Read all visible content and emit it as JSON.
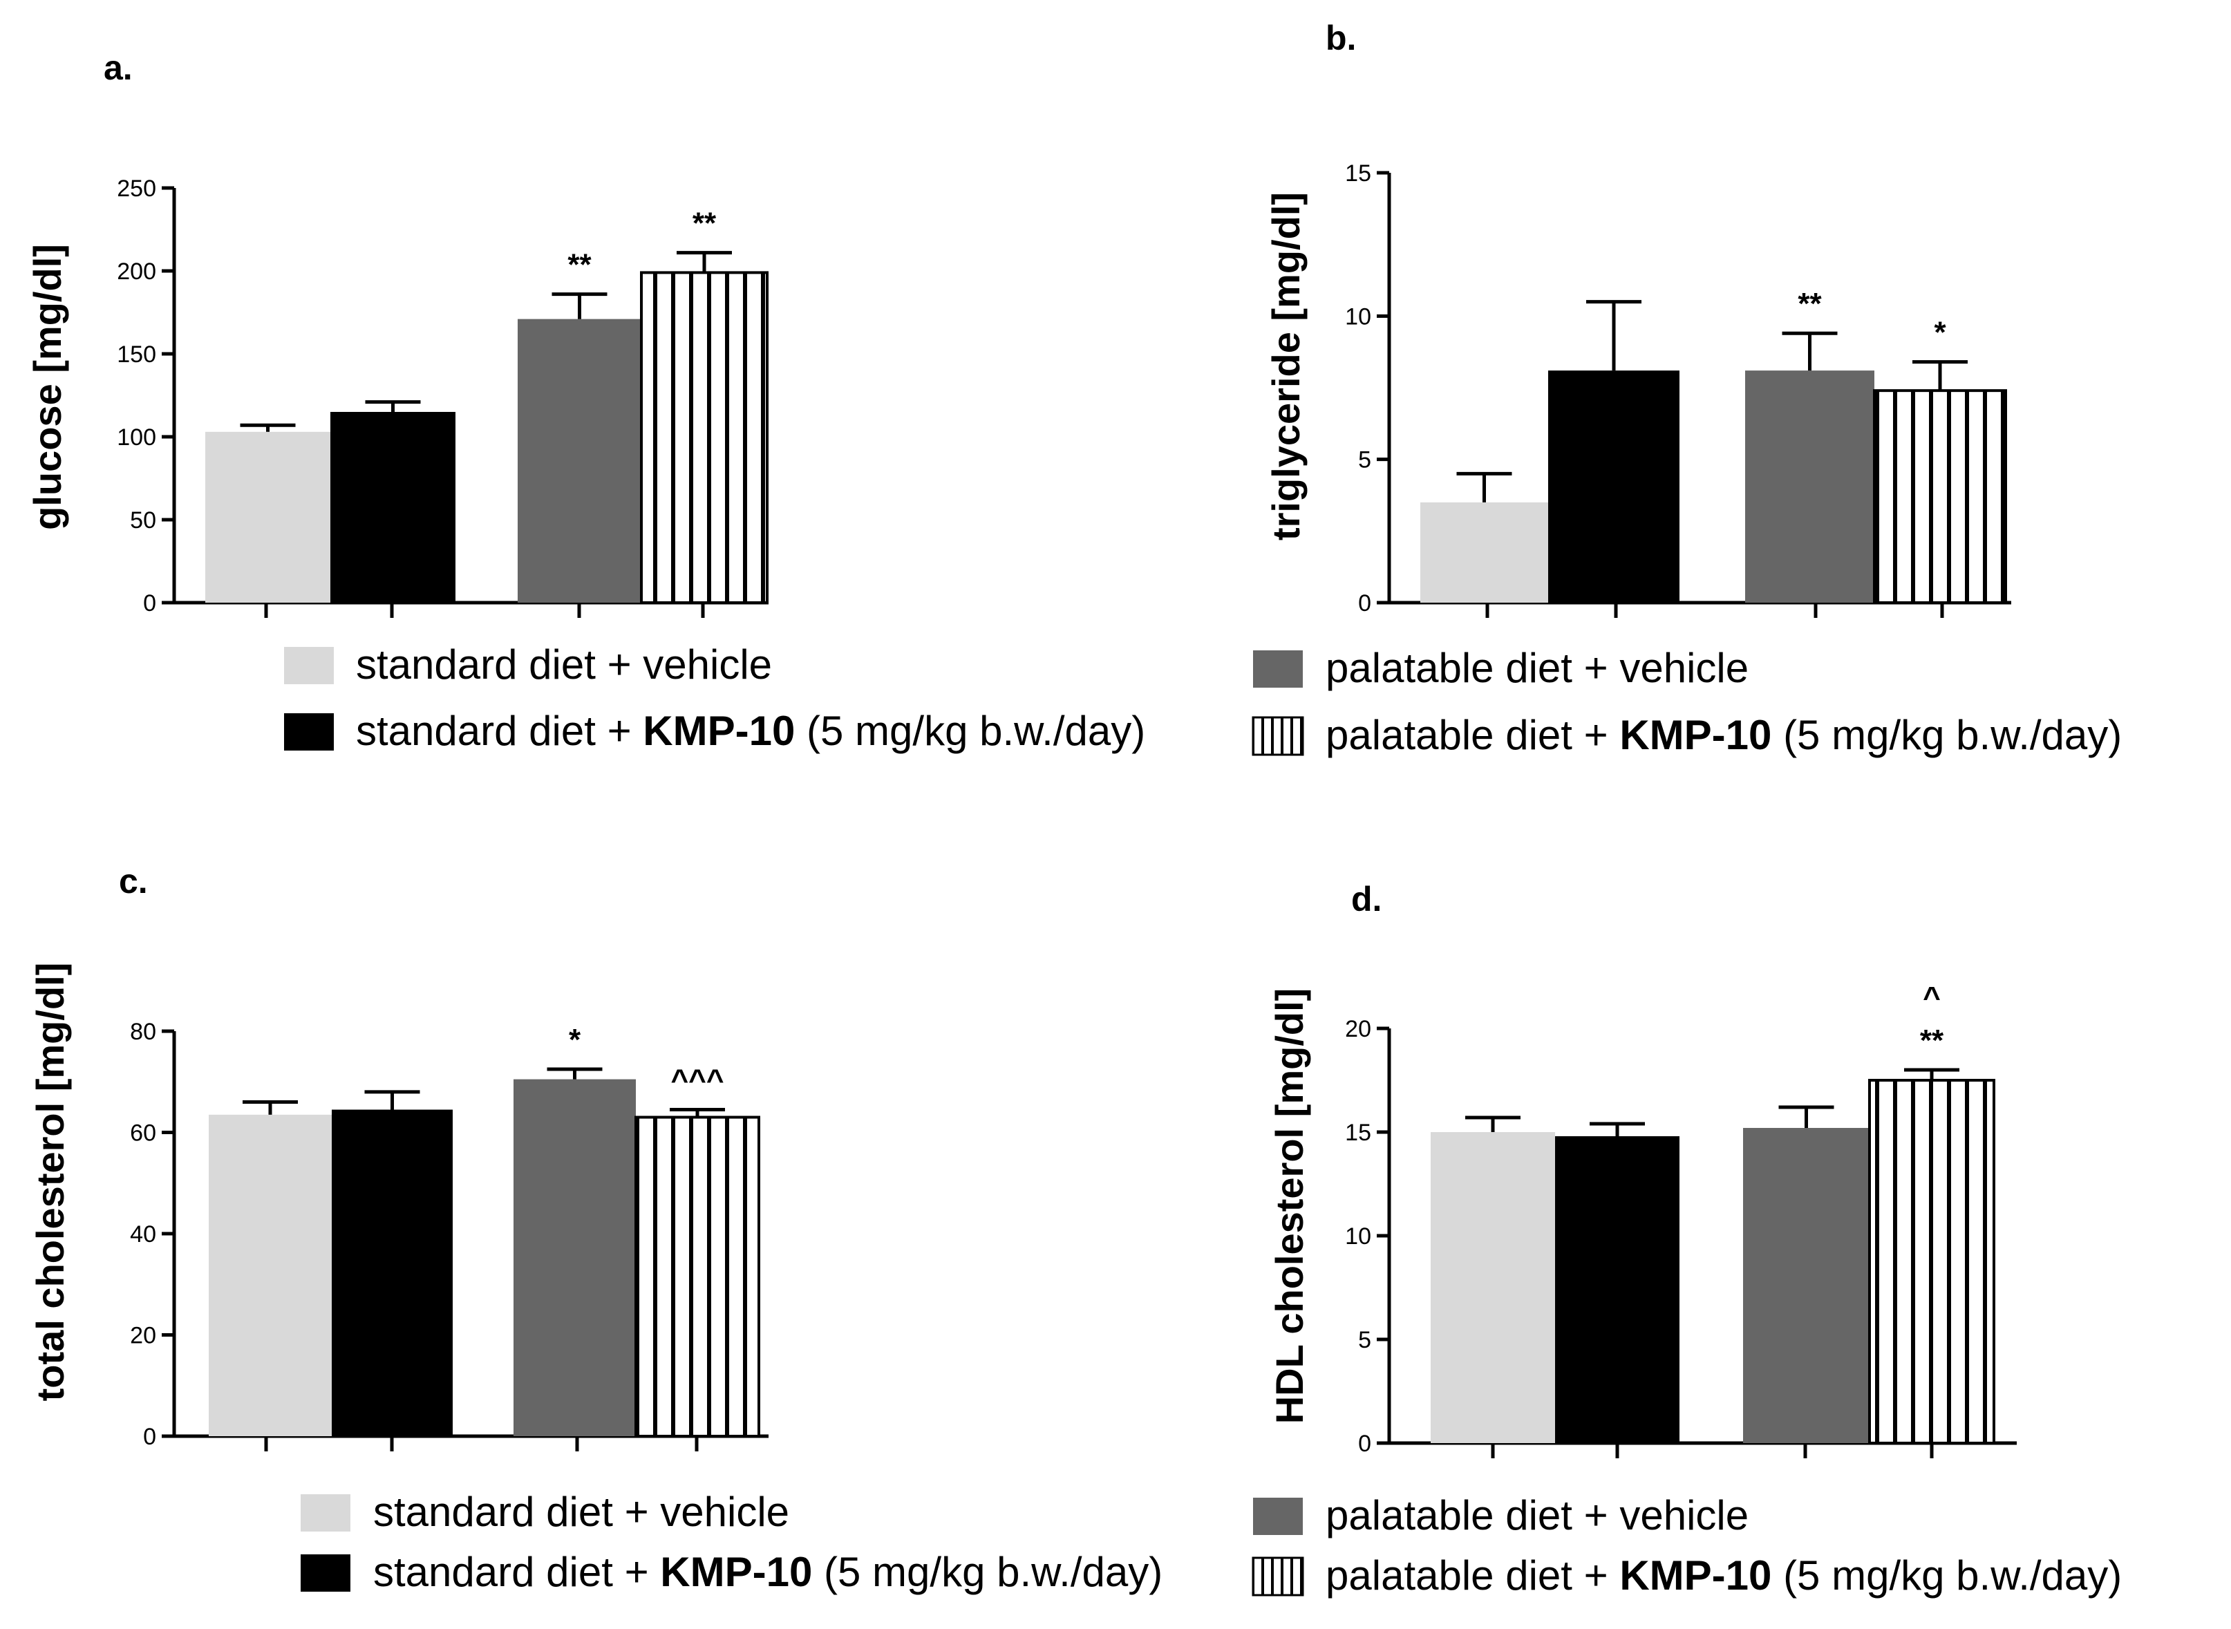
{
  "colors": {
    "standard_vehicle": "#d9d9d9",
    "standard_kmp": "#000000",
    "palatable_vehicle": "#666666",
    "palatable_kmp": "stripes",
    "axis": "#000000"
  },
  "chart_data": [
    {
      "type": "bar",
      "panel_label": "a.",
      "ylabel": "glucose [mg/dl]",
      "ylim": [
        0,
        250
      ],
      "yticks": [
        "0",
        "50",
        "100",
        "150",
        "200",
        "250"
      ],
      "groups": [
        "standard diet + vehicle",
        "standard diet + KMP-10",
        "palatable diet + vehicle",
        "palatable diet + KMP-10"
      ],
      "values": [
        103,
        115,
        171,
        199
      ],
      "errors": [
        4,
        6,
        15,
        12
      ],
      "annotations": [
        "",
        "",
        "**",
        "**"
      ],
      "legend": [
        {
          "label": "standard diet + vehicle",
          "bold": "",
          "suffix": ""
        },
        {
          "label": "standard diet + ",
          "bold": "KMP-10",
          "suffix": " (5 mg/kg b.w./day)"
        }
      ]
    },
    {
      "type": "bar",
      "panel_label": "b.",
      "ylabel": "triglyceride [mg/dl]",
      "ylim": [
        0,
        15
      ],
      "yticks": [
        "0",
        "5",
        "10",
        "15"
      ],
      "groups": [
        "standard diet + vehicle",
        "standard diet + KMP-10",
        "palatable diet + vehicle",
        "palatable diet + KMP-10"
      ],
      "values": [
        3.5,
        8.1,
        8.1,
        7.4
      ],
      "errors": [
        1.0,
        2.4,
        1.3,
        1.0
      ],
      "annotations": [
        "",
        "",
        "**",
        "*"
      ],
      "legend": [
        {
          "label": "palatable diet + vehicle",
          "bold": "",
          "suffix": ""
        },
        {
          "label": "palatable diet + ",
          "bold": "KMP-10",
          "suffix": " (5 mg/kg b.w./day)"
        }
      ]
    },
    {
      "type": "bar",
      "panel_label": "c.",
      "ylabel": "total cholesterol [mg/dl]",
      "ylim": [
        0,
        80
      ],
      "yticks": [
        "0",
        "20",
        "40",
        "60",
        "80"
      ],
      "groups": [
        "standard diet + vehicle",
        "standard diet + KMP-10",
        "palatable diet + vehicle",
        "palatable diet + KMP-10"
      ],
      "values": [
        63.5,
        64.5,
        70.5,
        63
      ],
      "errors": [
        2.5,
        3.5,
        2.0,
        1.5
      ],
      "annotations": [
        "",
        "",
        "*",
        "^^^"
      ],
      "legend": [
        {
          "label": "standard diet + vehicle",
          "bold": "",
          "suffix": ""
        },
        {
          "label": "standard diet + ",
          "bold": "KMP-10",
          "suffix": " (5 mg/kg b.w./day)"
        }
      ]
    },
    {
      "type": "bar",
      "panel_label": "d.",
      "ylabel": "HDL cholesterol [mg/dl]",
      "ylim": [
        0,
        20
      ],
      "yticks": [
        "0",
        "5",
        "10",
        "15",
        "20"
      ],
      "groups": [
        "standard diet + vehicle",
        "standard diet + KMP-10",
        "palatable diet + vehicle",
        "palatable diet + KMP-10"
      ],
      "values": [
        15,
        14.8,
        15.2,
        17.5
      ],
      "errors": [
        0.7,
        0.6,
        1.0,
        0.5
      ],
      "annotations": [
        "",
        "",
        "",
        "^\n**"
      ],
      "legend": [
        {
          "label": "palatable diet + vehicle",
          "bold": "",
          "suffix": ""
        },
        {
          "label": "palatable diet + ",
          "bold": "KMP-10",
          "suffix": " (5 mg/kg b.w./day)"
        }
      ]
    }
  ]
}
